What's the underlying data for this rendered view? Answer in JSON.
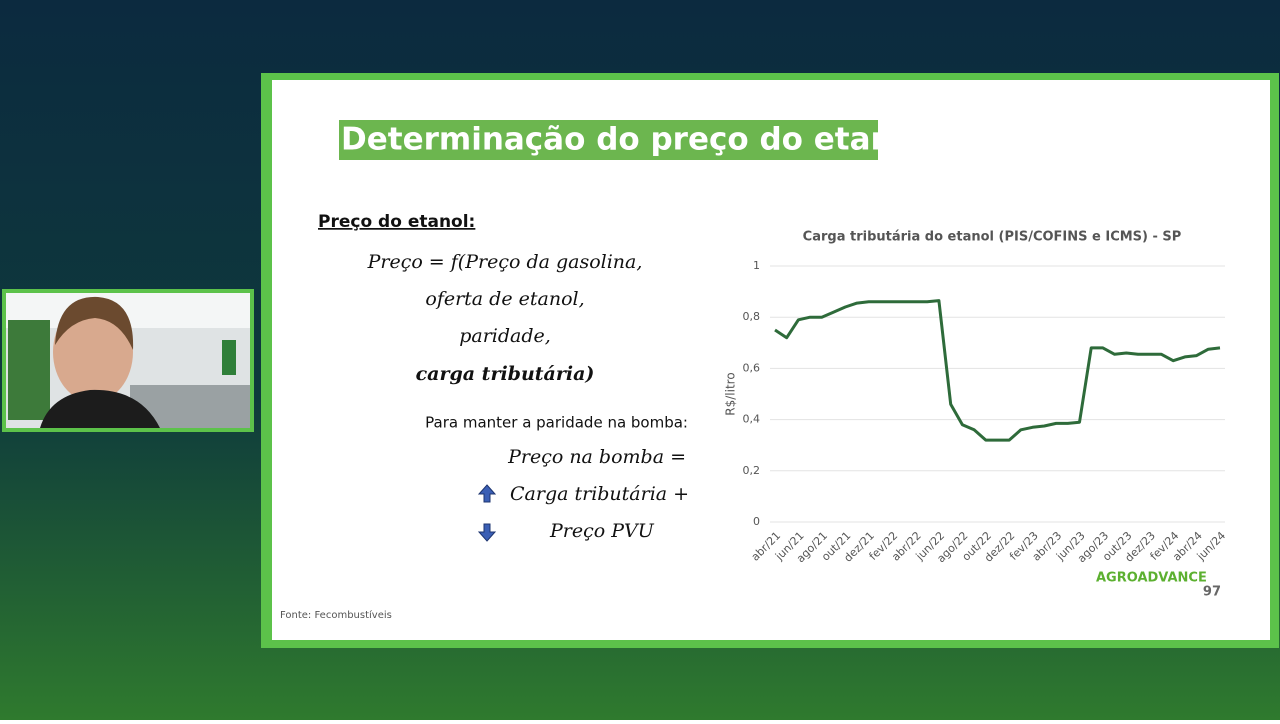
{
  "slide": {
    "title": "Determinação do preço do etanol",
    "heading": "Preço do etanol:",
    "formula": [
      "Preço = f(Preço da gasolina,",
      "oferta de etanol,",
      "paridade,",
      "carga tributária)"
    ],
    "parity_heading": "Para manter a paridade na bomba:",
    "parity": [
      "Preço na bomba =",
      "Carga tributária +",
      "Preço PVU"
    ],
    "source": "Fonte: Fecombustíveis",
    "logo": "AGROADVANCE",
    "page": "97"
  },
  "chart_data": {
    "type": "line",
    "title": "Carga tributária do etanol (PIS/COFINS e ICMS) - SP",
    "y_label": "R$/litro",
    "color": "#2e6b3a",
    "grid": true,
    "categories": [
      "abr/21",
      null,
      "jun/21",
      null,
      "ago/21",
      null,
      "out/21",
      null,
      "dez/21",
      null,
      "fev/22",
      null,
      "abr/22",
      null,
      "jun/22",
      null,
      "ago/22",
      null,
      "out/22",
      null,
      "dez/22",
      null,
      "fev/23",
      null,
      "abr/23",
      null,
      "jun/23",
      null,
      "ago/23",
      null,
      "out/23",
      null,
      "dez/23",
      null,
      "fev/24",
      null,
      "abr/24",
      null,
      "jun/24"
    ],
    "values": [
      0.75,
      0.72,
      0.79,
      0.8,
      0.8,
      0.82,
      0.84,
      0.855,
      0.86,
      0.86,
      0.86,
      0.86,
      0.86,
      0.86,
      0.865,
      0.46,
      0.38,
      0.36,
      0.32,
      0.32,
      0.32,
      0.36,
      0.37,
      0.375,
      0.385,
      0.385,
      0.39,
      0.68,
      0.68,
      0.655,
      0.66,
      0.655,
      0.655,
      0.655,
      0.63,
      0.645,
      0.65,
      0.675,
      0.68
    ],
    "ylim": [
      0,
      1
    ],
    "yticks": [
      0,
      {
        "value": 0.2,
        "label": "0,2"
      },
      {
        "value": 0.4,
        "label": "0,4"
      },
      {
        "value": 0.6,
        "label": "0,6"
      },
      {
        "value": 0.8,
        "label": "0,8"
      },
      1
    ]
  }
}
